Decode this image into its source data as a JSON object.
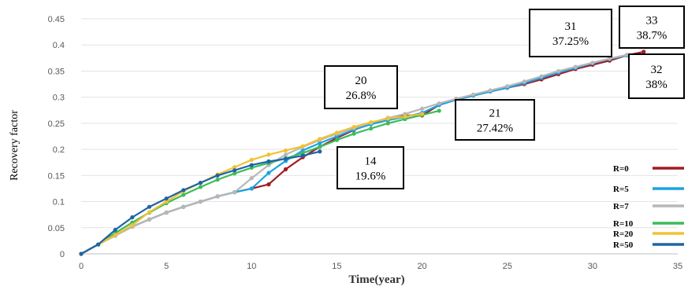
{
  "chart_data": {
    "type": "line",
    "xlabel": "Time(year)",
    "ylabel": "Recovery factor",
    "xlim": [
      0,
      35
    ],
    "ylim": [
      0,
      0.45
    ],
    "xticks": [
      "0",
      "5",
      "10",
      "15",
      "20",
      "25",
      "30",
      "35"
    ],
    "yticks": [
      "0",
      "0.05",
      "0.1",
      "0.15",
      "0.2",
      "0.25",
      "0.3",
      "0.35",
      "0.4",
      "0.45"
    ],
    "grid": "horizontal",
    "legend_position": "right",
    "series": [
      {
        "name": "R=0",
        "color": "#a31b23",
        "x": [
          0,
          1,
          2,
          3,
          4,
          5,
          6,
          7,
          8,
          9,
          10,
          11,
          12,
          13,
          14,
          15,
          16,
          17,
          18,
          19,
          20,
          21,
          22,
          23,
          24,
          25,
          26,
          27,
          28,
          29,
          30,
          31,
          32,
          33
        ],
        "y": [
          0,
          0.018,
          0.035,
          0.052,
          0.066,
          0.079,
          0.09,
          0.1,
          0.11,
          0.118,
          0.125,
          0.133,
          0.162,
          0.185,
          0.205,
          0.222,
          0.237,
          0.25,
          0.26,
          0.265,
          0.265,
          0.285,
          0.295,
          0.303,
          0.311,
          0.318,
          0.325,
          0.334,
          0.344,
          0.354,
          0.362,
          0.37,
          0.38,
          0.387
        ]
      },
      {
        "name": "R=5",
        "color": "#1aa3e2",
        "x": [
          0,
          1,
          2,
          3,
          4,
          5,
          6,
          7,
          8,
          9,
          10,
          11,
          12,
          13,
          14,
          15,
          16,
          17,
          18,
          19,
          20,
          21,
          22,
          23,
          24,
          25,
          26,
          27,
          28,
          29,
          30,
          31,
          32
        ],
        "y": [
          0,
          0.018,
          0.035,
          0.052,
          0.066,
          0.079,
          0.09,
          0.1,
          0.11,
          0.118,
          0.125,
          0.155,
          0.178,
          0.198,
          0.212,
          0.225,
          0.238,
          0.248,
          0.256,
          0.262,
          0.27,
          0.285,
          0.295,
          0.303,
          0.311,
          0.318,
          0.327,
          0.337,
          0.347,
          0.356,
          0.365,
          0.373,
          0.38
        ]
      },
      {
        "name": "R=7",
        "color": "#b7b7b7",
        "x": [
          0,
          1,
          2,
          3,
          4,
          5,
          6,
          7,
          8,
          9,
          10,
          11,
          12,
          13,
          14,
          15,
          16,
          17,
          18,
          19,
          20,
          21,
          22,
          23,
          24,
          25,
          26,
          27,
          28,
          29,
          30,
          31,
          32
        ],
        "y": [
          0,
          0.018,
          0.035,
          0.052,
          0.066,
          0.079,
          0.09,
          0.1,
          0.11,
          0.118,
          0.145,
          0.17,
          0.19,
          0.205,
          0.218,
          0.23,
          0.241,
          0.251,
          0.26,
          0.268,
          0.278,
          0.288,
          0.297,
          0.305,
          0.313,
          0.321,
          0.33,
          0.34,
          0.35,
          0.358,
          0.366,
          0.374,
          0.381
        ]
      },
      {
        "name": "R=10",
        "color": "#3cbc5a",
        "x": [
          0,
          1,
          2,
          3,
          4,
          5,
          6,
          7,
          8,
          9,
          10,
          11,
          12,
          13,
          14,
          15,
          16,
          17,
          18,
          19,
          20,
          21
        ],
        "y": [
          0,
          0.018,
          0.04,
          0.06,
          0.079,
          0.097,
          0.113,
          0.128,
          0.142,
          0.154,
          0.165,
          0.174,
          0.183,
          0.193,
          0.205,
          0.218,
          0.23,
          0.24,
          0.25,
          0.258,
          0.266,
          0.274
        ]
      },
      {
        "name": "R=20",
        "color": "#f2c232",
        "x": [
          0,
          1,
          2,
          3,
          4,
          5,
          6,
          7,
          8,
          9,
          10,
          11,
          12,
          13,
          14,
          15,
          16,
          17,
          18,
          19,
          20
        ],
        "y": [
          0,
          0.018,
          0.036,
          0.055,
          0.08,
          0.1,
          0.12,
          0.136,
          0.152,
          0.166,
          0.18,
          0.19,
          0.198,
          0.206,
          0.22,
          0.232,
          0.243,
          0.252,
          0.259,
          0.263,
          0.268
        ]
      },
      {
        "name": "R=50",
        "color": "#1f63a8",
        "x": [
          0,
          1,
          2,
          3,
          4,
          5,
          6,
          7,
          8,
          9,
          10,
          11,
          12,
          13,
          14
        ],
        "y": [
          0,
          0.018,
          0.046,
          0.07,
          0.09,
          0.106,
          0.122,
          0.136,
          0.15,
          0.16,
          0.17,
          0.177,
          0.182,
          0.188,
          0.196
        ]
      }
    ],
    "annotations": [
      {
        "line1": "20",
        "line2": "26.8%"
      },
      {
        "line1": "14",
        "line2": "19.6%"
      },
      {
        "line1": "21",
        "line2": "27.42%"
      },
      {
        "line1": "31",
        "line2": "37.25%"
      },
      {
        "line1": "33",
        "line2": "38.7%"
      },
      {
        "line1": "32",
        "line2": "38%"
      }
    ]
  }
}
